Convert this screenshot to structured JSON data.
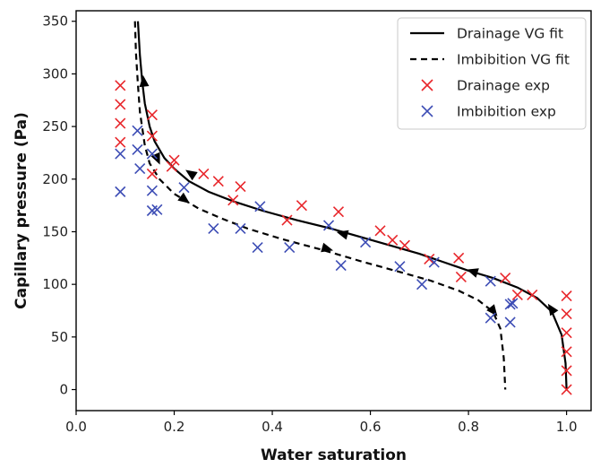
{
  "chart_data": {
    "type": "scatter",
    "xlabel": "Water saturation",
    "ylabel": "Capillary pressure (Pa)",
    "xlim": [
      0.0,
      1.05
    ],
    "ylim": [
      -20,
      360
    ],
    "xticks": [
      0.0,
      0.2,
      0.4,
      0.6,
      0.8,
      1.0
    ],
    "xtick_labels": [
      "0.0",
      "0.2",
      "0.4",
      "0.6",
      "0.8",
      "1.0"
    ],
    "yticks": [
      0,
      50,
      100,
      150,
      200,
      250,
      300,
      350
    ],
    "ytick_labels": [
      "0",
      "50",
      "100",
      "150",
      "200",
      "250",
      "300",
      "350"
    ],
    "grid": false,
    "legend_position": "top-right",
    "series": [
      {
        "name": "Drainage VG fit",
        "kind": "line",
        "style": "solid",
        "color": "#000000",
        "x": [
          0.126,
          0.13,
          0.135,
          0.14,
          0.15,
          0.16,
          0.18,
          0.2,
          0.23,
          0.27,
          0.32,
          0.38,
          0.45,
          0.52,
          0.58,
          0.64,
          0.7,
          0.75,
          0.8,
          0.85,
          0.9,
          0.94,
          0.97,
          0.99,
          0.998,
          1.0
        ],
        "y": [
          350,
          318,
          292,
          272,
          250,
          236,
          220,
          210,
          198,
          188,
          179,
          170,
          161,
          153,
          145,
          137,
          129,
          121,
          113,
          106,
          97,
          87,
          74,
          52,
          25,
          0
        ],
        "arrows": [
          {
            "x": 0.138,
            "y": 292,
            "dir": "up"
          },
          {
            "x": 0.235,
            "y": 205,
            "dir": "up"
          },
          {
            "x": 0.545,
            "y": 148,
            "dir": "up"
          },
          {
            "x": 0.81,
            "y": 112,
            "dir": "up"
          },
          {
            "x": 0.97,
            "y": 76,
            "dir": "up"
          }
        ]
      },
      {
        "name": "Imbibition VG fit",
        "kind": "line",
        "style": "dashed",
        "color": "#000000",
        "x": [
          0.12,
          0.122,
          0.126,
          0.13,
          0.14,
          0.15,
          0.17,
          0.2,
          0.25,
          0.3,
          0.35,
          0.42,
          0.5,
          0.58,
          0.65,
          0.72,
          0.78,
          0.82,
          0.85,
          0.865,
          0.872,
          0.875
        ],
        "y": [
          350,
          320,
          290,
          264,
          232,
          215,
          200,
          186,
          172,
          162,
          153,
          143,
          133,
          122,
          113,
          104,
          94,
          85,
          74,
          58,
          30,
          0
        ],
        "arrows": [
          {
            "x": 0.165,
            "y": 220,
            "dir": "down"
          },
          {
            "x": 0.22,
            "y": 181,
            "dir": "down"
          },
          {
            "x": 0.51,
            "y": 134,
            "dir": "down"
          },
          {
            "x": 0.85,
            "y": 75,
            "dir": "down"
          }
        ]
      },
      {
        "name": "Drainage exp",
        "kind": "scatter",
        "marker": "x",
        "color": "#e8262b",
        "x": [
          0.09,
          0.09,
          0.09,
          0.09,
          0.155,
          0.155,
          0.155,
          0.195,
          0.2,
          0.26,
          0.29,
          0.32,
          0.335,
          0.43,
          0.46,
          0.535,
          0.62,
          0.645,
          0.67,
          0.72,
          0.78,
          0.785,
          0.875,
          0.9,
          0.93,
          1.0,
          1.0,
          1.0,
          1.0,
          1.0,
          1.0
        ],
        "y": [
          289,
          271,
          253,
          235,
          261,
          241,
          205,
          212,
          218,
          205,
          198,
          180,
          193,
          161,
          175,
          169,
          151,
          142,
          137,
          124,
          125,
          107,
          106,
          90,
          90,
          89,
          72,
          54,
          36,
          18,
          0
        ]
      },
      {
        "name": "Imbibition exp",
        "kind": "scatter",
        "marker": "x",
        "color": "#3d4db5",
        "x": [
          0.09,
          0.09,
          0.125,
          0.125,
          0.13,
          0.155,
          0.155,
          0.155,
          0.165,
          0.22,
          0.28,
          0.335,
          0.37,
          0.375,
          0.435,
          0.515,
          0.54,
          0.59,
          0.66,
          0.705,
          0.73,
          0.845,
          0.845,
          0.885,
          0.885,
          0.89
        ],
        "y": [
          224,
          188,
          246,
          228,
          210,
          224,
          189,
          170,
          171,
          192,
          153,
          153,
          135,
          174,
          135,
          156,
          118,
          140,
          117,
          100,
          121,
          103,
          68,
          81,
          64,
          82
        ]
      }
    ]
  }
}
